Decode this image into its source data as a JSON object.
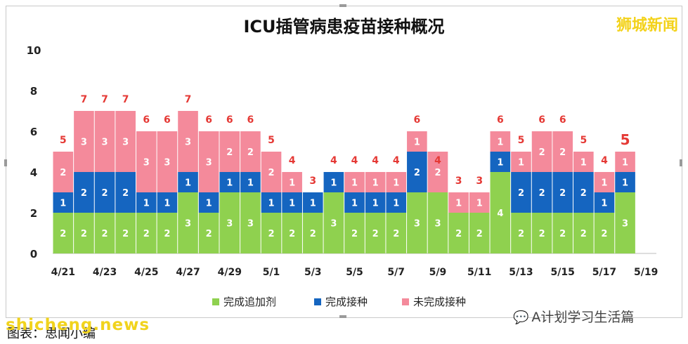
{
  "header": {
    "title": "ICU插管病患疫苗接种概况",
    "brand": "狮城新闻"
  },
  "footer": {
    "caption": "图表：思闻小编",
    "watermark": "shicheng.news",
    "wechat_label": "A计划学习生活篇"
  },
  "colors": {
    "booster": "#8fd14f",
    "vaccinated": "#1565c0",
    "unvaccinated": "#f48a9b",
    "total_label": "#e53935",
    "inner_label": "#ffffff"
  },
  "chart_data": {
    "type": "bar",
    "stacked": true,
    "title": "ICU插管病患疫苗接种概况",
    "ylim": [
      0,
      10
    ],
    "yticks": [
      0,
      2,
      4,
      6,
      8,
      10
    ],
    "categories": [
      "4/21",
      "4/22",
      "4/23",
      "4/24",
      "4/25",
      "4/26",
      "4/27",
      "4/28",
      "4/29",
      "4/30",
      "5/1",
      "5/2",
      "5/3",
      "5/4",
      "5/5",
      "5/6",
      "5/7",
      "5/8",
      "5/9",
      "5/10",
      "5/11",
      "5/12",
      "5/13",
      "5/14",
      "5/15",
      "5/16",
      "5/17",
      "5/18",
      "5/19"
    ],
    "xtick_labels": [
      "4/21",
      "4/23",
      "4/25",
      "4/27",
      "4/29",
      "5/1",
      "5/3",
      "5/5",
      "5/7",
      "5/9",
      "5/11",
      "5/13",
      "5/15",
      "5/17",
      "5/19"
    ],
    "series": [
      {
        "name": "完成追加剂",
        "color": "#8fd14f",
        "values": [
          2,
          2,
          2,
          2,
          2,
          2,
          3,
          2,
          3,
          3,
          2,
          2,
          2,
          3,
          2,
          2,
          2,
          3,
          3,
          2,
          2,
          4,
          2,
          2,
          2,
          2,
          2,
          3,
          null
        ]
      },
      {
        "name": "完成接种",
        "color": "#1565c0",
        "values": [
          1,
          2,
          2,
          2,
          1,
          1,
          1,
          1,
          1,
          1,
          1,
          1,
          1,
          1,
          1,
          1,
          1,
          2,
          0,
          0,
          0,
          1,
          2,
          2,
          2,
          2,
          1,
          1,
          null
        ]
      },
      {
        "name": "未完成接种",
        "color": "#f48a9b",
        "values": [
          2,
          3,
          3,
          3,
          3,
          3,
          3,
          3,
          2,
          2,
          2,
          1,
          0,
          0,
          1,
          1,
          1,
          1,
          2,
          1,
          1,
          1,
          1,
          2,
          2,
          1,
          1,
          1,
          null
        ]
      }
    ],
    "totals": [
      5,
      7,
      7,
      7,
      6,
      6,
      7,
      6,
      6,
      6,
      5,
      4,
      3,
      4,
      4,
      4,
      4,
      6,
      4,
      3,
      3,
      6,
      5,
      6,
      6,
      5,
      4,
      5,
      null
    ],
    "legend": [
      "完成追加剂",
      "完成接种",
      "未完成接种"
    ],
    "legend_position": "bottom",
    "grid": false
  }
}
